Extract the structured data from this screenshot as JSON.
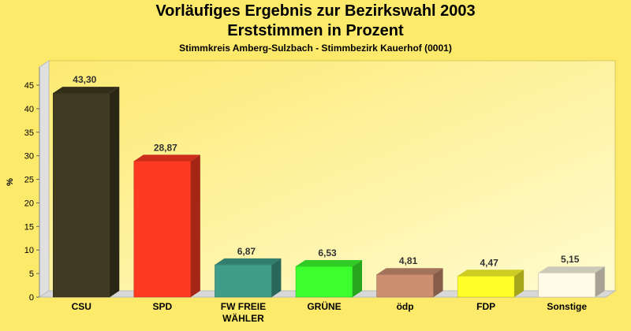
{
  "title_line1": "Vorläufiges Ergebnis zur Bezirkswahl 2003",
  "title_line2": "Erststimmen in Prozent",
  "subtitle": "Stimmkreis Amberg-Sulzbach - Stimmbezirk Kauerhof (0001)",
  "colors": {
    "background": "#fde96a",
    "plot_back": "#fff7a0",
    "axis": "#999999"
  },
  "chart_data": {
    "type": "bar",
    "ylabel": "%",
    "ylim": [
      0,
      45
    ],
    "yticks": [
      0,
      5,
      10,
      15,
      20,
      25,
      30,
      35,
      40,
      45
    ],
    "categories": [
      "CSU",
      "SPD",
      "FW FREIE WÄHLER",
      "GRÜNE",
      "ödp",
      "FDP",
      "Sonstige"
    ],
    "category_lines": [
      [
        "CSU"
      ],
      [
        "SPD"
      ],
      [
        "FW FREIE",
        "WÄHLER"
      ],
      [
        "GRÜNE"
      ],
      [
        "ödp"
      ],
      [
        "FDP"
      ],
      [
        "Sonstige"
      ]
    ],
    "values": [
      43.3,
      28.87,
      6.87,
      6.53,
      4.81,
      4.47,
      5.15
    ],
    "value_labels": [
      "43,30",
      "28,87",
      "6,87",
      "6,53",
      "4,81",
      "4,47",
      "5,15"
    ],
    "bar_colors": [
      "#3f3a21",
      "#ff3a22",
      "#3f9e8a",
      "#3cff2e",
      "#cc8f70",
      "#ffff2a",
      "#fffbe6"
    ]
  }
}
